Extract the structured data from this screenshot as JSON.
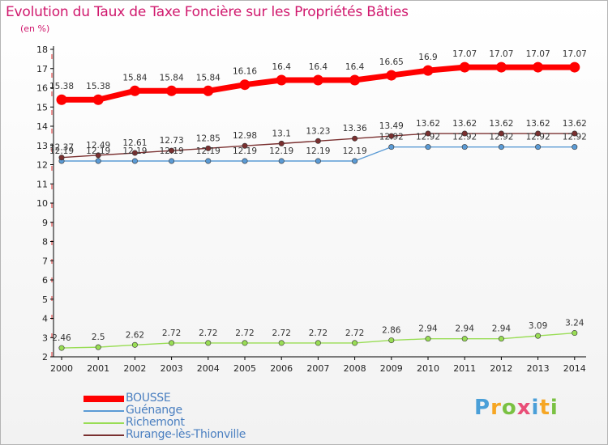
{
  "title": "Evolution du Taux de Taxe Foncière sur les Propriétés Bâties",
  "unit_label": "(en %)",
  "logo_text": [
    "P",
    "r",
    "o",
    "x",
    "i",
    "t",
    "i"
  ],
  "logo_colors": [
    "#4a9fd8",
    "#f6a623",
    "#7ac142",
    "#e94e77",
    "#4a9fd8",
    "#f6a623",
    "#7ac142"
  ],
  "chart_data": {
    "type": "line",
    "title": "Evolution du Taux de Taxe Foncière sur les Propriétés Bâties",
    "ylabel": "(en %)",
    "xlabel": "",
    "ylim": [
      2,
      18
    ],
    "yticks": [
      "2",
      "3",
      "4",
      "5",
      "6",
      "7",
      "8",
      "9",
      "10",
      "11",
      "12",
      "13",
      "14",
      "15",
      "16",
      "17",
      "18"
    ],
    "categories": [
      "2000",
      "2001",
      "2002",
      "2003",
      "2004",
      "2005",
      "2006",
      "2007",
      "2008",
      "2009",
      "2010",
      "2011",
      "2012",
      "2013",
      "2014"
    ],
    "series": [
      {
        "name": "BOUSSE",
        "color": "#ff0000",
        "values": [
          15.38,
          15.38,
          15.84,
          15.84,
          15.84,
          16.16,
          16.4,
          16.4,
          16.4,
          16.65,
          16.9,
          17.07,
          17.07,
          17.07,
          17.07
        ],
        "labels": [
          "15.38",
          "15.38",
          "15.84",
          "15.84",
          "15.84",
          "16.16",
          "16.4",
          "16.4",
          "16.4",
          "16.65",
          "16.9",
          "17.07",
          "17.07",
          "17.07",
          "17.07"
        ]
      },
      {
        "name": "Guénange",
        "color": "#5b9bd5",
        "values": [
          12.19,
          12.19,
          12.19,
          12.19,
          12.19,
          12.19,
          12.19,
          12.19,
          12.19,
          12.92,
          12.92,
          12.92,
          12.92,
          12.92,
          12.92
        ],
        "labels": [
          "12.19",
          "12.19",
          "12.19",
          "12.19",
          "12.19",
          "12.19",
          "12.19",
          "12.19",
          "12.19",
          "12.92",
          "12.92",
          "12.92",
          "12.92",
          "12.92",
          "12.92"
        ]
      },
      {
        "name": "Richemont",
        "color": "#99dd55",
        "values": [
          2.46,
          2.5,
          2.62,
          2.72,
          2.72,
          2.72,
          2.72,
          2.72,
          2.72,
          2.86,
          2.94,
          2.94,
          2.94,
          3.09,
          3.24
        ],
        "labels": [
          "2.46",
          "2.5",
          "2.62",
          "2.72",
          "2.72",
          "2.72",
          "2.72",
          "2.72",
          "2.72",
          "2.86",
          "2.94",
          "2.94",
          "2.94",
          "3.09",
          "3.24"
        ]
      },
      {
        "name": "Rurange-lès-Thionville",
        "color": "#7a3030",
        "values": [
          12.37,
          12.49,
          12.61,
          12.73,
          12.85,
          12.98,
          13.1,
          13.23,
          13.36,
          13.49,
          13.62,
          13.62,
          13.62,
          13.62,
          13.62
        ],
        "labels": [
          "12.37",
          "12.49",
          "12.61",
          "12.73",
          "12.85",
          "12.98",
          "13.1",
          "13.23",
          "13.36",
          "13.49",
          "13.62",
          "13.62",
          "13.62",
          "13.62",
          "13.62"
        ]
      }
    ],
    "legend_position": "bottom-left",
    "grid": false
  }
}
